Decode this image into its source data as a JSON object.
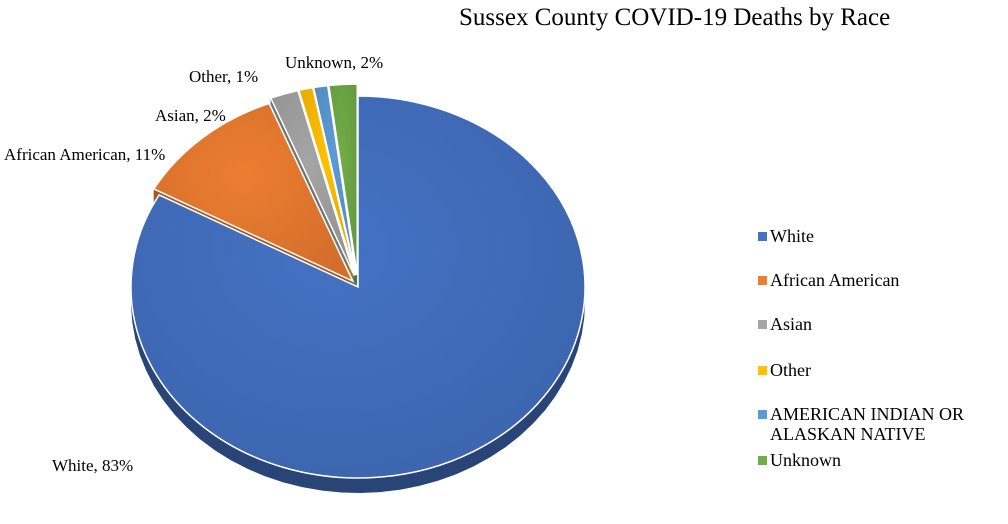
{
  "chart_data": {
    "type": "pie",
    "title": "Sussex County COVID-19 Deaths by Race",
    "categories": [
      "White",
      "African American",
      "Asian",
      "Other",
      "AMERICAN INDIAN OR ALASKAN NATIVE",
      "Unknown"
    ],
    "values": [
      83,
      11,
      2,
      1,
      1,
      2
    ],
    "unit": "%",
    "colors": [
      "#4472C4",
      "#ED7D31",
      "#A5A5A5",
      "#FFC000",
      "#5B9BD5",
      "#70AD47"
    ],
    "data_labels": [
      "White, 83%",
      "African American, 11%",
      "Asian, 2%",
      "Other, 1%",
      "",
      "Unknown, 2%"
    ],
    "exploded": true,
    "style": "3d",
    "legend_position": "right"
  }
}
